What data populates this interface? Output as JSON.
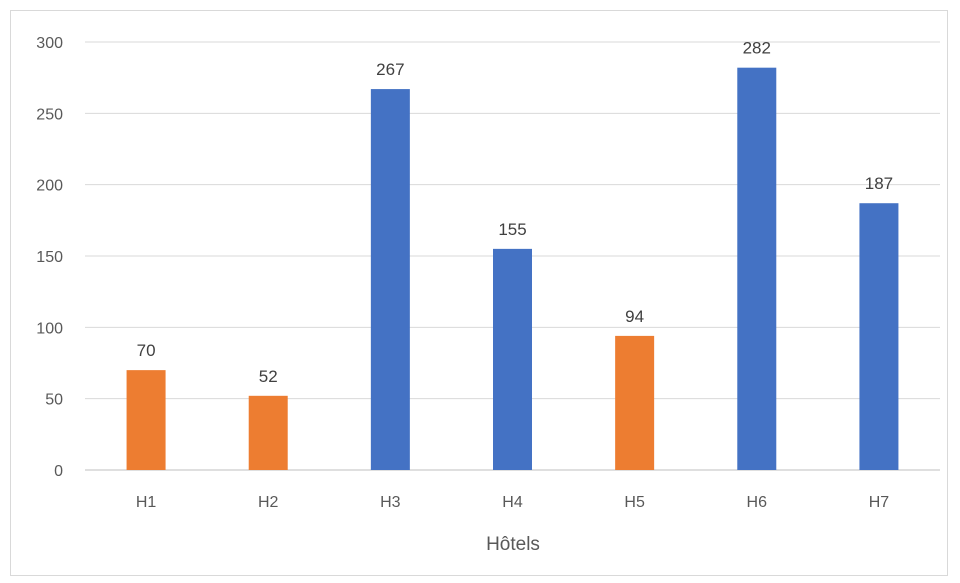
{
  "chart_data": {
    "type": "bar",
    "title": "",
    "xlabel": "Hôtels",
    "ylabel": "",
    "categories": [
      "H1",
      "H2",
      "H3",
      "H4",
      "H5",
      "H6",
      "H7"
    ],
    "values": [
      70,
      52,
      267,
      155,
      94,
      282,
      187
    ],
    "bar_colors": [
      "#ed7d31",
      "#ed7d31",
      "#4472c4",
      "#4472c4",
      "#ed7d31",
      "#4472c4",
      "#4472c4"
    ],
    "ylim": [
      0,
      300
    ],
    "yticks": [
      0,
      50,
      100,
      150,
      200,
      250,
      300
    ],
    "grid": true,
    "data_labels": true,
    "legend": "none"
  }
}
